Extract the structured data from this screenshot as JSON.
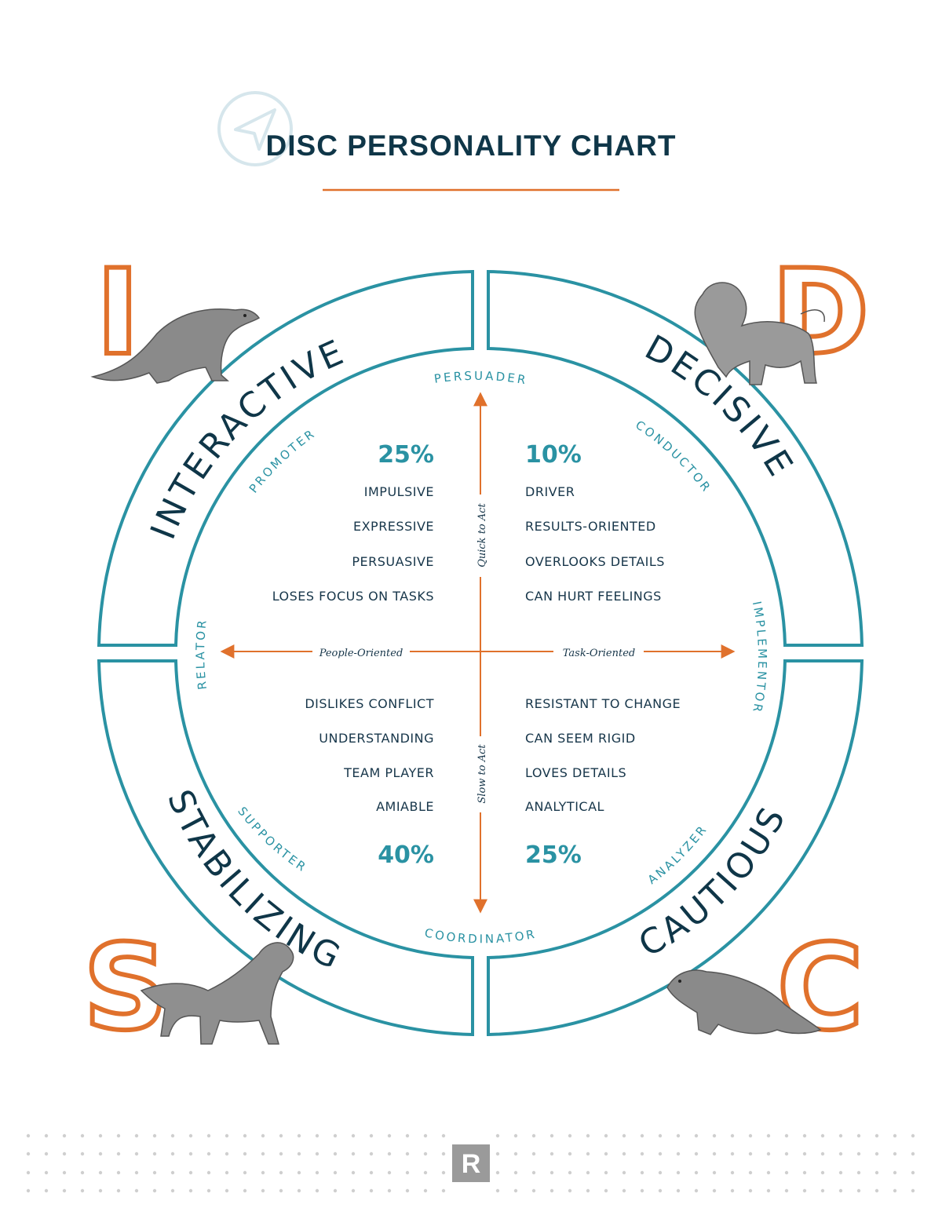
{
  "title": "DISC PERSONALITY CHART",
  "colors": {
    "navy": "#0f3648",
    "teal": "#2a92a3",
    "orange": "#e0712c",
    "animal": "#6e6e6e"
  },
  "quadrants": {
    "i": {
      "letter": "I",
      "name": "INTERACTIVE",
      "role": "PROMOTER",
      "percent": "25%",
      "traits": [
        "IMPULSIVE",
        "EXPRESSIVE",
        "PERSUASIVE",
        "LOSES FOCUS ON TASKS"
      ],
      "animal": "otter-icon"
    },
    "d": {
      "letter": "D",
      "name": "DECISIVE",
      "role": "CONDUCTOR",
      "percent": "10%",
      "traits": [
        "DRIVER",
        "RESULTS-ORIENTED",
        "OVERLOOKS DETAILS",
        "CAN HURT FEELINGS"
      ],
      "animal": "lion-icon"
    },
    "s": {
      "letter": "S",
      "name": "STABILIZING",
      "role": "SUPPORTER",
      "percent": "40%",
      "traits": [
        "DISLIKES CONFLICT",
        "UNDERSTANDING",
        "TEAM PLAYER",
        "AMIABLE"
      ],
      "animal": "dog-icon"
    },
    "c": {
      "letter": "C",
      "name": "CAUTIOUS",
      "role": "ANALYZER",
      "percent": "25%",
      "traits": [
        "RESISTANT TO CHANGE",
        "CAN SEEM RIGID",
        "LOVES DETAILS",
        "ANALYTICAL"
      ],
      "animal": "beaver-icon"
    }
  },
  "boundary_roles": {
    "top": "PERSUADER",
    "bottom": "COORDINATOR",
    "left": "RELATOR",
    "right": "IMPLEMENTOR"
  },
  "axes": {
    "up": "Quick to Act",
    "down": "Slow to Act",
    "left": "People-Oriented",
    "right": "Task-Oriented"
  },
  "footer": {
    "logo_letter": "R"
  }
}
